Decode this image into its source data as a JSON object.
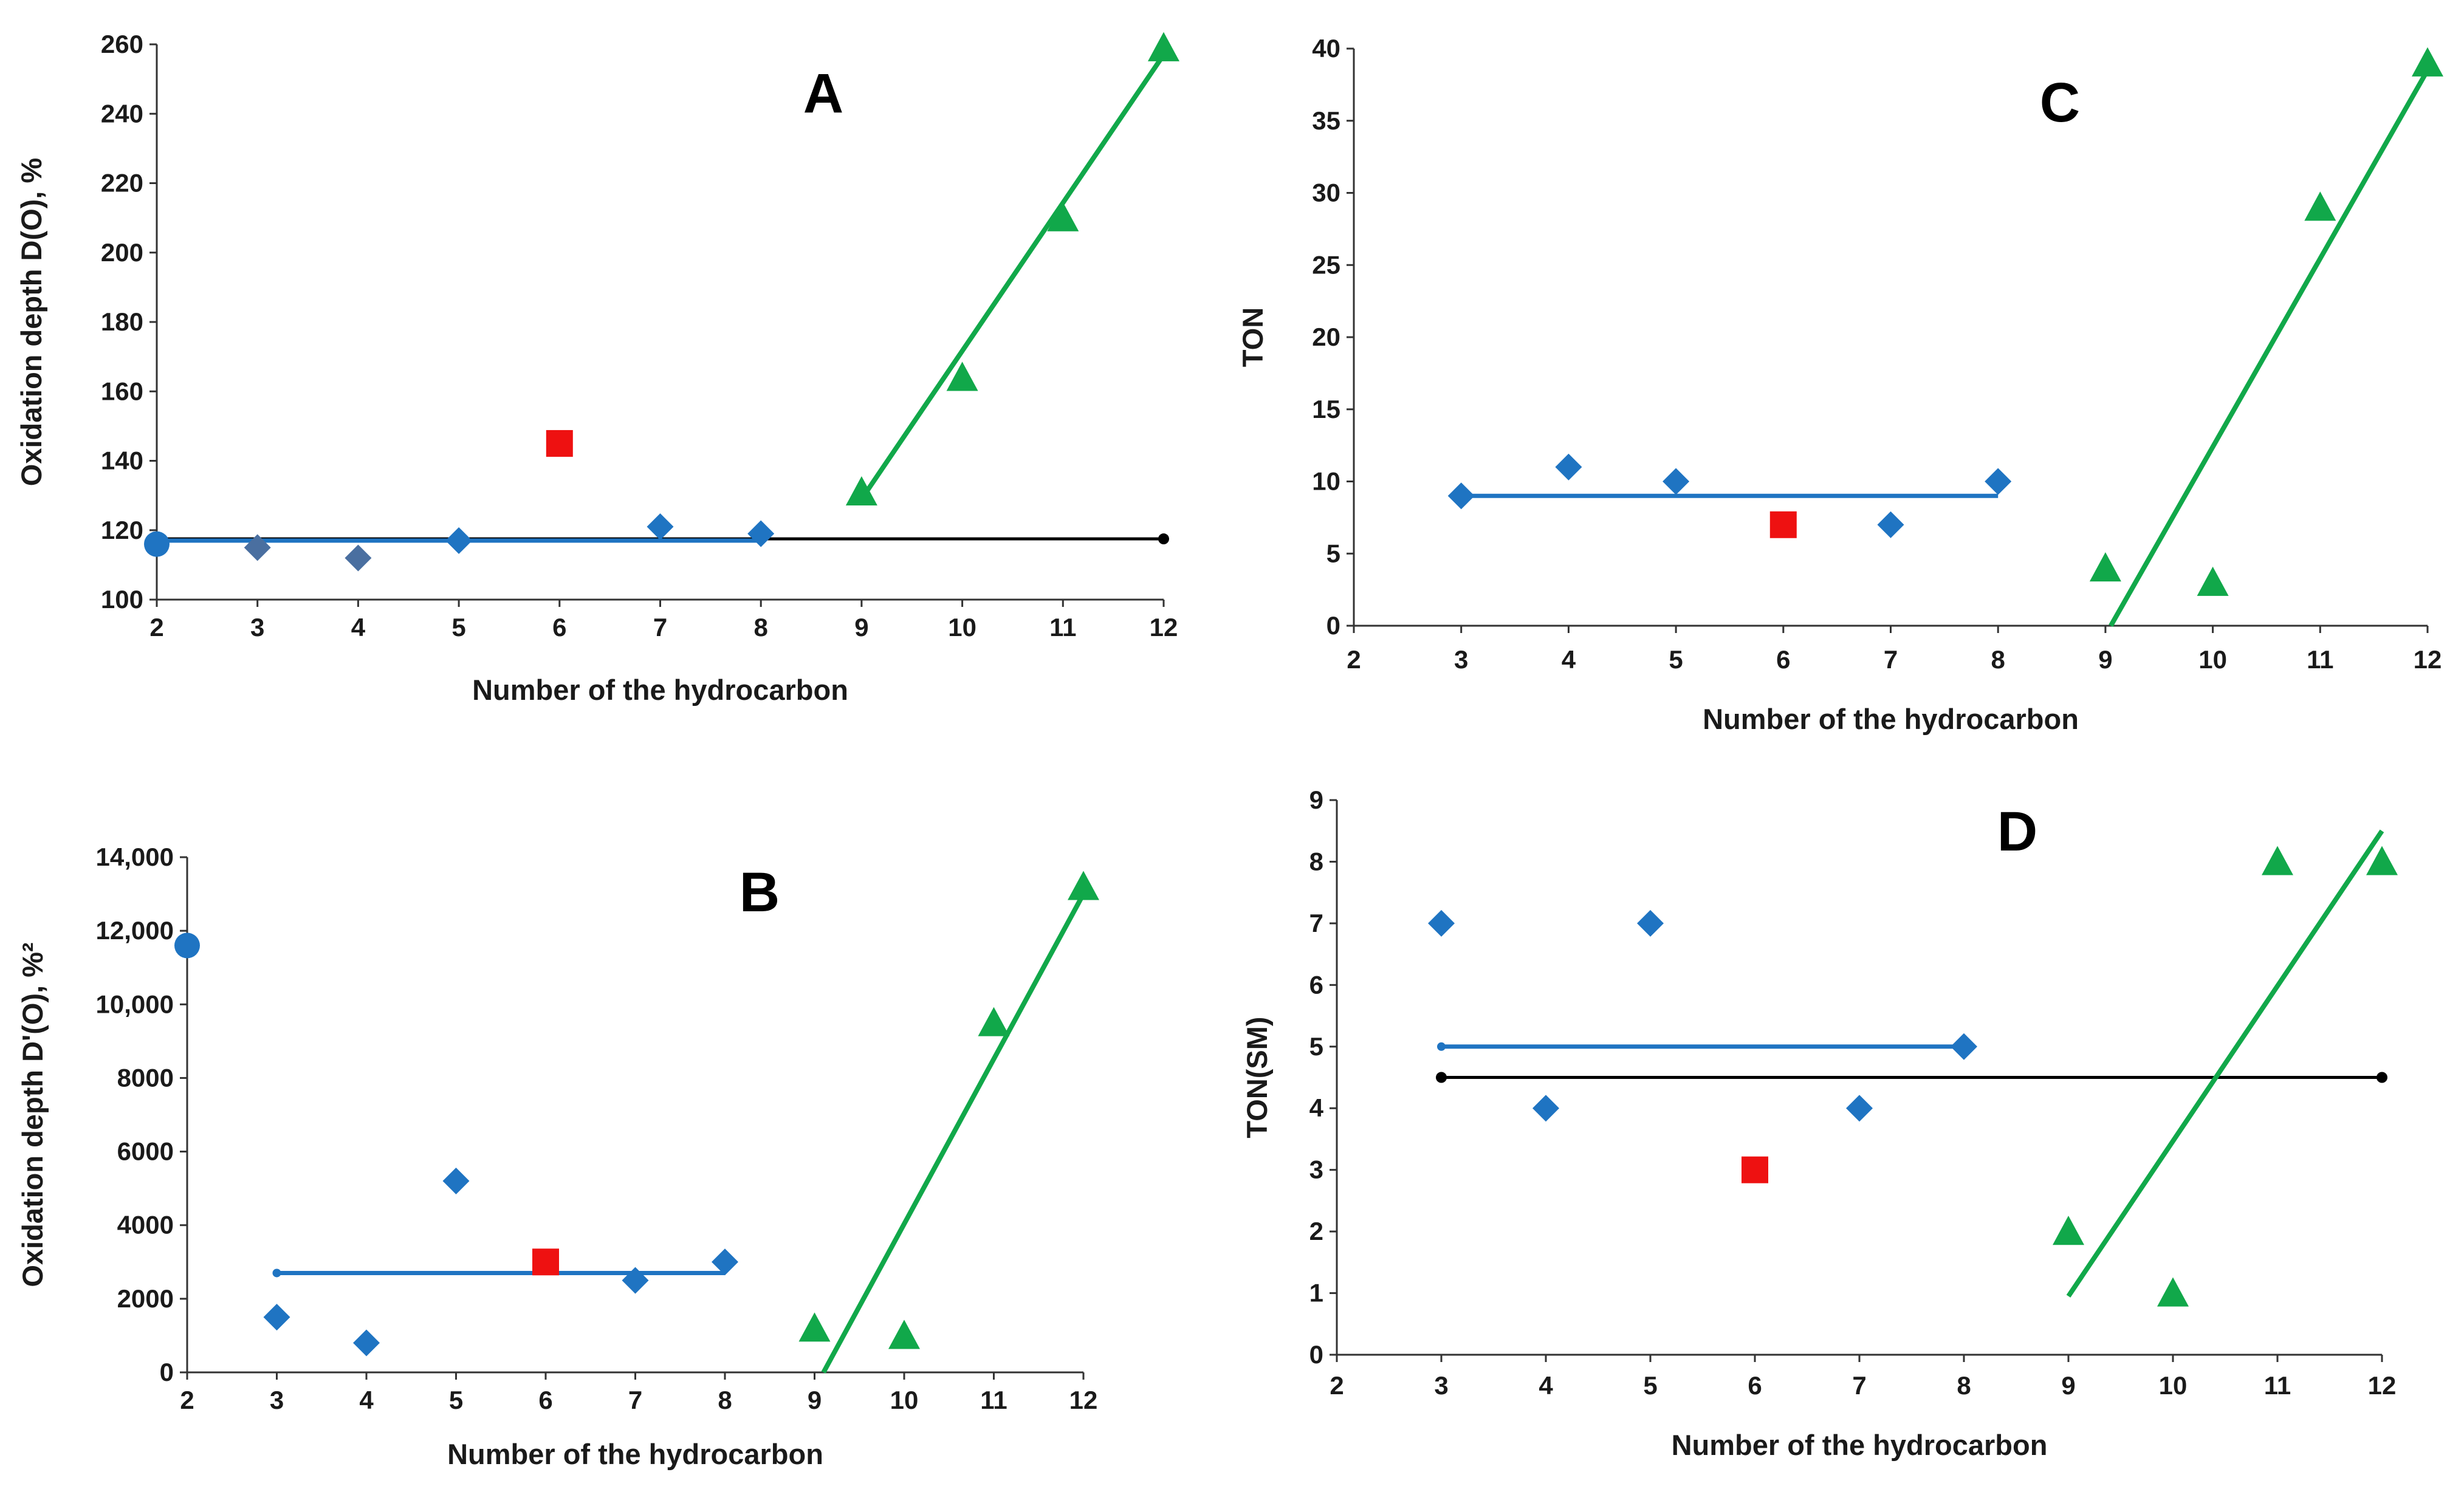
{
  "colors": {
    "blue": "#1f74c2",
    "blue_dark": "#4a6fa0",
    "green": "#11a84a",
    "red": "#ee1111",
    "black": "#000000",
    "axis": "#333333"
  },
  "chart_data": [
    {
      "id": "A",
      "type": "scatter",
      "letter": "A",
      "xlabel": "Number of the hydrocarbon",
      "ylabel": "Oxidation depth D(O), %",
      "xlim": [
        2,
        12
      ],
      "ylim": [
        100,
        260
      ],
      "xticks": [
        "2",
        "3",
        "4",
        "5",
        "6",
        "7",
        "8",
        "9",
        "10",
        "11",
        "12"
      ],
      "yticks": [
        "100",
        "120",
        "140",
        "160",
        "180",
        "200",
        "220",
        "240",
        "260"
      ],
      "points": {
        "circle": [
          [
            2,
            116
          ]
        ],
        "diamond": [
          [
            3,
            115
          ],
          [
            4,
            112
          ],
          [
            5,
            117
          ],
          [
            7,
            121
          ],
          [
            8,
            119
          ]
        ],
        "square": [
          [
            6,
            145
          ]
        ],
        "triangle": [
          [
            9,
            131
          ],
          [
            10,
            164
          ],
          [
            11,
            210
          ],
          [
            12,
            259
          ]
        ]
      },
      "lines": {
        "black": [
          [
            2,
            117.5
          ],
          [
            12,
            117.5
          ]
        ],
        "blue": [
          [
            2,
            117
          ],
          [
            8,
            117
          ]
        ],
        "green": [
          [
            9,
            129
          ],
          [
            12,
            257
          ]
        ]
      }
    },
    {
      "id": "B",
      "type": "scatter",
      "letter": "B",
      "xlabel": "Number of the hydrocarbon",
      "ylabel": "Oxidation depth D'(O), %²",
      "xlim": [
        2,
        12
      ],
      "ylim": [
        0,
        14000
      ],
      "xticks": [
        "2",
        "3",
        "4",
        "5",
        "6",
        "7",
        "8",
        "9",
        "10",
        "11",
        "12"
      ],
      "yticks": [
        "0",
        "2000",
        "4000",
        "6000",
        "8000",
        "10,000",
        "12,000",
        "14,000"
      ],
      "points": {
        "circle": [
          [
            2,
            11600
          ]
        ],
        "diamond": [
          [
            3,
            1500
          ],
          [
            4,
            800
          ],
          [
            5,
            5200
          ],
          [
            7,
            2500
          ],
          [
            8,
            3000
          ]
        ],
        "square": [
          [
            6,
            3000
          ]
        ],
        "triangle": [
          [
            9,
            1200
          ],
          [
            10,
            1000
          ],
          [
            11,
            9500
          ],
          [
            12,
            13200
          ]
        ]
      },
      "lines": {
        "blue": [
          [
            3,
            2700
          ],
          [
            8,
            2700
          ]
        ],
        "green": [
          [
            9.1,
            0
          ],
          [
            12,
            13000
          ]
        ]
      }
    },
    {
      "id": "C",
      "type": "scatter",
      "letter": "C",
      "xlabel": "Number  of the hydrocarbon",
      "ylabel": "TON",
      "xlim": [
        2,
        12
      ],
      "ylim": [
        0,
        40
      ],
      "xticks": [
        "2",
        "3",
        "4",
        "5",
        "6",
        "7",
        "8",
        "9",
        "10",
        "11",
        "12"
      ],
      "yticks": [
        "0",
        "5",
        "10",
        "15",
        "20",
        "25",
        "30",
        "35",
        "40"
      ],
      "points": {
        "diamond": [
          [
            3,
            9
          ],
          [
            4,
            11
          ],
          [
            5,
            10
          ],
          [
            7,
            7
          ],
          [
            8,
            10
          ]
        ],
        "square": [
          [
            6,
            7
          ]
        ],
        "triangle": [
          [
            9,
            4
          ],
          [
            10,
            3
          ],
          [
            11,
            29
          ],
          [
            12,
            39
          ]
        ]
      },
      "lines": {
        "blue": [
          [
            3,
            9
          ],
          [
            8,
            9
          ]
        ],
        "green": [
          [
            9.05,
            0
          ],
          [
            12,
            38.5
          ]
        ]
      }
    },
    {
      "id": "D",
      "type": "scatter",
      "letter": "D",
      "xlabel": "Number of the hydrocarbon",
      "ylabel": "TON(SM)",
      "xlim": [
        2,
        12
      ],
      "ylim": [
        0,
        9
      ],
      "xticks": [
        "2",
        "3",
        "4",
        "5",
        "6",
        "7",
        "8",
        "9",
        "10",
        "11",
        "12"
      ],
      "yticks": [
        "0",
        "1",
        "2",
        "3",
        "4",
        "5",
        "6",
        "7",
        "8",
        "9"
      ],
      "points": {
        "diamond": [
          [
            3,
            7
          ],
          [
            4,
            4
          ],
          [
            5,
            7
          ],
          [
            7,
            4
          ],
          [
            8,
            5
          ]
        ],
        "square": [
          [
            6,
            3
          ]
        ],
        "triangle": [
          [
            9,
            2
          ],
          [
            10,
            1
          ],
          [
            11,
            8
          ],
          [
            12,
            8
          ]
        ]
      },
      "lines": {
        "black": [
          [
            3,
            4.5
          ],
          [
            12,
            4.5
          ]
        ],
        "blue": [
          [
            3,
            5
          ],
          [
            8,
            5
          ]
        ],
        "green": [
          [
            9,
            0.95
          ],
          [
            12,
            8.5
          ]
        ]
      }
    }
  ]
}
